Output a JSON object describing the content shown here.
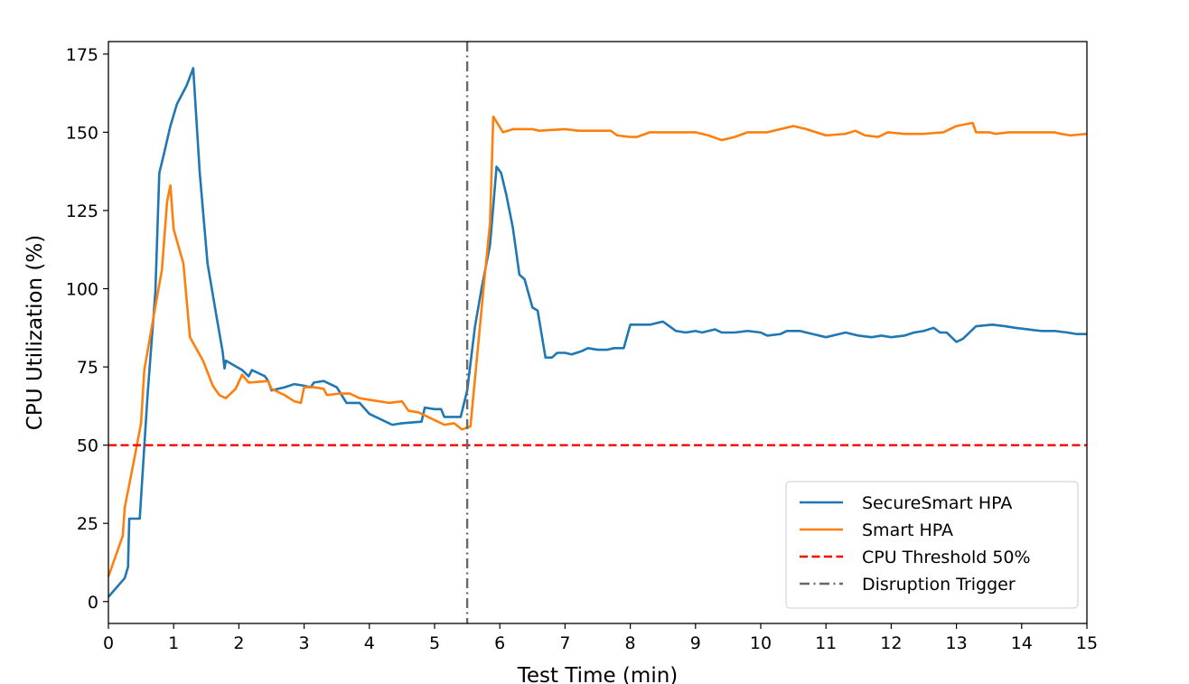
{
  "chart_data": {
    "type": "line",
    "xlabel": "Test Time (min)",
    "ylabel": "CPU Utilization (%)",
    "xlim": [
      0,
      15
    ],
    "ylim": [
      -7,
      179
    ],
    "xticks": [
      0,
      1,
      2,
      3,
      4,
      5,
      6,
      7,
      8,
      9,
      10,
      11,
      12,
      13,
      14,
      15
    ],
    "yticks": [
      0,
      25,
      50,
      75,
      100,
      125,
      150,
      175
    ],
    "grid": false,
    "legend_position": "lower-right",
    "series": [
      {
        "name": "SecureSmart HPA",
        "color": "#1f77b4",
        "style": "solid",
        "points": [
          [
            0,
            1.5
          ],
          [
            0.25,
            7.5
          ],
          [
            0.3,
            11
          ],
          [
            0.32,
            26.5
          ],
          [
            0.48,
            26.5
          ],
          [
            0.6,
            66
          ],
          [
            0.72,
            99
          ],
          [
            0.78,
            137
          ],
          [
            0.85,
            143
          ],
          [
            0.95,
            152
          ],
          [
            1.05,
            159
          ],
          [
            1.2,
            165
          ],
          [
            1.3,
            170.5
          ],
          [
            1.4,
            137
          ],
          [
            1.52,
            108
          ],
          [
            1.65,
            92
          ],
          [
            1.75,
            80
          ],
          [
            1.78,
            74.5
          ],
          [
            1.8,
            77
          ],
          [
            2.05,
            74
          ],
          [
            2.15,
            72
          ],
          [
            2.2,
            74
          ],
          [
            2.3,
            73
          ],
          [
            2.4,
            72
          ],
          [
            2.45,
            70.5
          ],
          [
            2.5,
            67.5
          ],
          [
            2.7,
            68.5
          ],
          [
            2.85,
            69.5
          ],
          [
            3.0,
            69
          ],
          [
            3.1,
            68.5
          ],
          [
            3.15,
            70
          ],
          [
            3.3,
            70.5
          ],
          [
            3.5,
            68.5
          ],
          [
            3.65,
            63.5
          ],
          [
            3.85,
            63.5
          ],
          [
            4.0,
            60
          ],
          [
            4.2,
            58
          ],
          [
            4.35,
            56.5
          ],
          [
            4.5,
            57
          ],
          [
            4.8,
            57.5
          ],
          [
            4.85,
            62
          ],
          [
            5.0,
            61.5
          ],
          [
            5.1,
            61.5
          ],
          [
            5.15,
            59
          ],
          [
            5.4,
            59
          ],
          [
            5.5,
            67.5
          ],
          [
            5.62,
            88
          ],
          [
            5.72,
            100
          ],
          [
            5.85,
            114
          ],
          [
            5.95,
            139
          ],
          [
            6.02,
            137
          ],
          [
            6.1,
            130
          ],
          [
            6.2,
            119.5
          ],
          [
            6.3,
            104.5
          ],
          [
            6.38,
            103
          ],
          [
            6.5,
            94
          ],
          [
            6.58,
            93
          ],
          [
            6.7,
            78
          ],
          [
            6.8,
            78
          ],
          [
            6.88,
            79.5
          ],
          [
            7.0,
            79.5
          ],
          [
            7.1,
            79
          ],
          [
            7.25,
            80
          ],
          [
            7.35,
            81
          ],
          [
            7.5,
            80.5
          ],
          [
            7.65,
            80.5
          ],
          [
            7.75,
            81
          ],
          [
            7.9,
            81
          ],
          [
            8.0,
            88.5
          ],
          [
            8.3,
            88.5
          ],
          [
            8.5,
            89.5
          ],
          [
            8.6,
            88
          ],
          [
            8.7,
            86.5
          ],
          [
            8.85,
            86
          ],
          [
            9.0,
            86.5
          ],
          [
            9.1,
            86
          ],
          [
            9.3,
            87
          ],
          [
            9.4,
            86
          ],
          [
            9.6,
            86
          ],
          [
            9.8,
            86.5
          ],
          [
            10.0,
            86
          ],
          [
            10.1,
            85
          ],
          [
            10.3,
            85.5
          ],
          [
            10.4,
            86.5
          ],
          [
            10.6,
            86.5
          ],
          [
            10.8,
            85.5
          ],
          [
            11.0,
            84.5
          ],
          [
            11.2,
            85.5
          ],
          [
            11.3,
            86
          ],
          [
            11.5,
            85
          ],
          [
            11.7,
            84.5
          ],
          [
            11.85,
            85
          ],
          [
            12.0,
            84.5
          ],
          [
            12.2,
            85
          ],
          [
            12.35,
            86
          ],
          [
            12.5,
            86.5
          ],
          [
            12.65,
            87.5
          ],
          [
            12.75,
            86
          ],
          [
            12.85,
            86
          ],
          [
            13.0,
            83
          ],
          [
            13.1,
            84
          ],
          [
            13.3,
            88
          ],
          [
            13.55,
            88.5
          ],
          [
            13.75,
            88
          ],
          [
            13.9,
            87.5
          ],
          [
            14.1,
            87
          ],
          [
            14.3,
            86.5
          ],
          [
            14.5,
            86.5
          ],
          [
            14.7,
            86
          ],
          [
            14.85,
            85.5
          ],
          [
            15.0,
            85.5
          ]
        ]
      },
      {
        "name": "Smart HPA",
        "color": "#ff7f0e",
        "style": "solid",
        "points": [
          [
            0,
            8
          ],
          [
            0.22,
            21
          ],
          [
            0.25,
            30
          ],
          [
            0.4,
            46
          ],
          [
            0.5,
            57
          ],
          [
            0.55,
            74
          ],
          [
            0.7,
            92
          ],
          [
            0.82,
            106
          ],
          [
            0.9,
            128
          ],
          [
            0.95,
            133
          ],
          [
            1.0,
            119
          ],
          [
            1.15,
            108
          ],
          [
            1.25,
            84.5
          ],
          [
            1.45,
            77
          ],
          [
            1.6,
            69
          ],
          [
            1.7,
            66
          ],
          [
            1.8,
            65
          ],
          [
            1.95,
            68
          ],
          [
            2.05,
            72.5
          ],
          [
            2.15,
            70
          ],
          [
            2.45,
            70.5
          ],
          [
            2.5,
            68
          ],
          [
            2.7,
            66
          ],
          [
            2.85,
            64
          ],
          [
            2.95,
            63.5
          ],
          [
            3.0,
            68.5
          ],
          [
            3.15,
            68.5
          ],
          [
            3.3,
            68
          ],
          [
            3.35,
            66
          ],
          [
            3.55,
            66.5
          ],
          [
            3.7,
            66.5
          ],
          [
            3.85,
            65
          ],
          [
            4.0,
            64.5
          ],
          [
            4.3,
            63.5
          ],
          [
            4.5,
            64
          ],
          [
            4.6,
            61
          ],
          [
            4.75,
            60.5
          ],
          [
            5.0,
            58
          ],
          [
            5.15,
            56.5
          ],
          [
            5.3,
            57
          ],
          [
            5.42,
            55
          ],
          [
            5.55,
            56
          ],
          [
            5.75,
            100
          ],
          [
            5.85,
            121
          ],
          [
            5.9,
            155
          ],
          [
            6.05,
            150
          ],
          [
            6.2,
            151
          ],
          [
            6.5,
            151
          ],
          [
            6.6,
            150.5
          ],
          [
            7.0,
            151
          ],
          [
            7.2,
            150.5
          ],
          [
            7.5,
            150.5
          ],
          [
            7.7,
            150.5
          ],
          [
            7.8,
            149
          ],
          [
            8.0,
            148.5
          ],
          [
            8.1,
            148.5
          ],
          [
            8.3,
            150
          ],
          [
            8.5,
            150
          ],
          [
            8.7,
            150
          ],
          [
            9.0,
            150
          ],
          [
            9.2,
            149
          ],
          [
            9.4,
            147.5
          ],
          [
            9.6,
            148.5
          ],
          [
            9.8,
            150
          ],
          [
            10.1,
            150
          ],
          [
            10.3,
            151
          ],
          [
            10.5,
            152
          ],
          [
            10.7,
            151
          ],
          [
            10.85,
            150
          ],
          [
            11.0,
            149
          ],
          [
            11.3,
            149.5
          ],
          [
            11.45,
            150.5
          ],
          [
            11.6,
            149
          ],
          [
            11.8,
            148.5
          ],
          [
            11.95,
            150
          ],
          [
            12.2,
            149.5
          ],
          [
            12.5,
            149.5
          ],
          [
            12.8,
            150
          ],
          [
            13.0,
            152
          ],
          [
            13.25,
            153
          ],
          [
            13.3,
            150
          ],
          [
            13.5,
            150
          ],
          [
            13.6,
            149.5
          ],
          [
            13.8,
            150
          ],
          [
            14.0,
            150
          ],
          [
            14.3,
            150
          ],
          [
            14.5,
            150
          ],
          [
            14.6,
            149.5
          ],
          [
            14.75,
            149
          ],
          [
            15.0,
            149.5
          ]
        ]
      },
      {
        "name": "CPU Threshold 50%",
        "color": "#ff0000",
        "style": "dashed",
        "orientation": "horizontal",
        "value": 50
      },
      {
        "name": "Disruption Trigger",
        "color": "#696969",
        "style": "dashdot",
        "orientation": "vertical",
        "value": 5.5
      }
    ]
  }
}
